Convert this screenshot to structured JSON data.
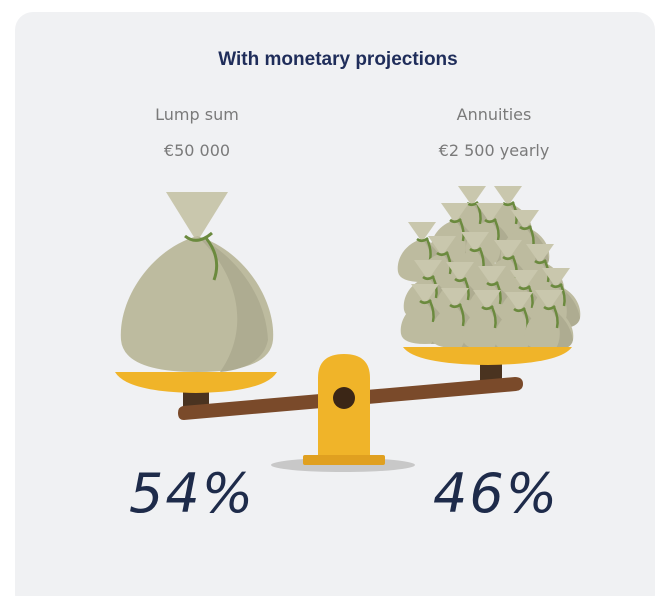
{
  "title": "With monetary projections",
  "left": {
    "label": "Lump sum",
    "amount": "€50 000",
    "share": "54%"
  },
  "right": {
    "label": "Annuities",
    "amount": "€2 500 yearly",
    "share": "46%"
  }
}
